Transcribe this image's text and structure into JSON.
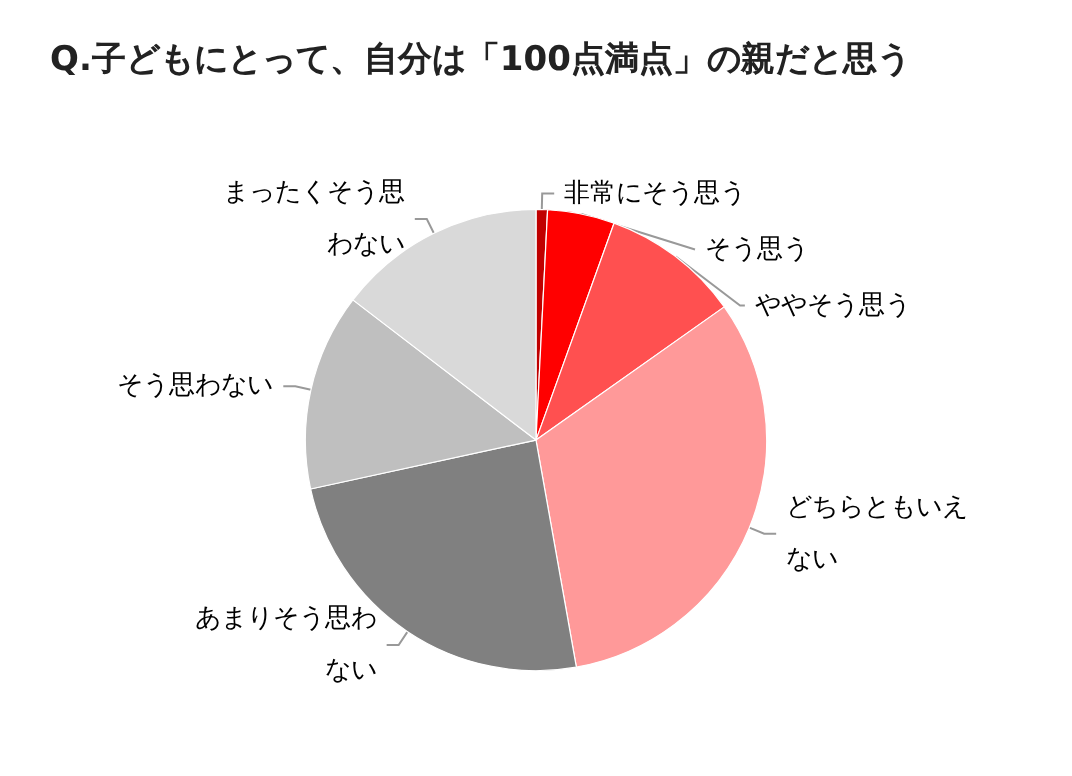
{
  "chart_data": {
    "type": "pie",
    "title": "Q.子どもにとって、自分は「100点満点」の親だと思う",
    "categories": [
      "非常にそう思う",
      "そう思う",
      "ややそう思う",
      "どちらともいえない",
      "あまりそう思わない",
      "そう思わない",
      "まったくそう思わない"
    ],
    "values": [
      0.8,
      4.7,
      9.7,
      32,
      24.4,
      13.8,
      14.6
    ],
    "colors": [
      "#c00000",
      "#ff0000",
      "#ff5050",
      "#ff9999",
      "#808080",
      "#bfbfbf",
      "#d9d9d9"
    ],
    "legend": false
  }
}
